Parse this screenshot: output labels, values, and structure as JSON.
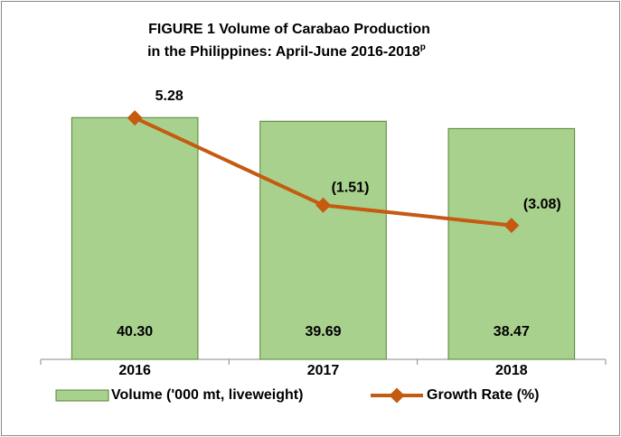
{
  "chart_data": {
    "type": "bar-line",
    "title": [
      "FIGURE 1  Volume of Carabao Production",
      "in the Philippines: April-June 2016-2018"
    ],
    "title_superscript": "p",
    "categories": [
      "2016",
      "2017",
      "2018"
    ],
    "series": [
      {
        "name": "Volume ('000 mt, liveweight)",
        "type": "bar",
        "color": "#a9d18e",
        "values": [
          40.3,
          39.69,
          38.47
        ],
        "value_labels": [
          "40.30",
          "39.69",
          "38.47"
        ]
      },
      {
        "name": "Growth Rate (%)",
        "type": "line",
        "axis": "y2",
        "color": "#c55a11",
        "values": [
          5.28,
          -1.51,
          -3.08
        ],
        "value_labels": [
          "5.28",
          "(1.51)",
          "(3.08)"
        ]
      }
    ],
    "ylim": [
      0,
      45
    ],
    "y2lim": [
      -13.5,
      7.5
    ],
    "legend": "bottom"
  }
}
